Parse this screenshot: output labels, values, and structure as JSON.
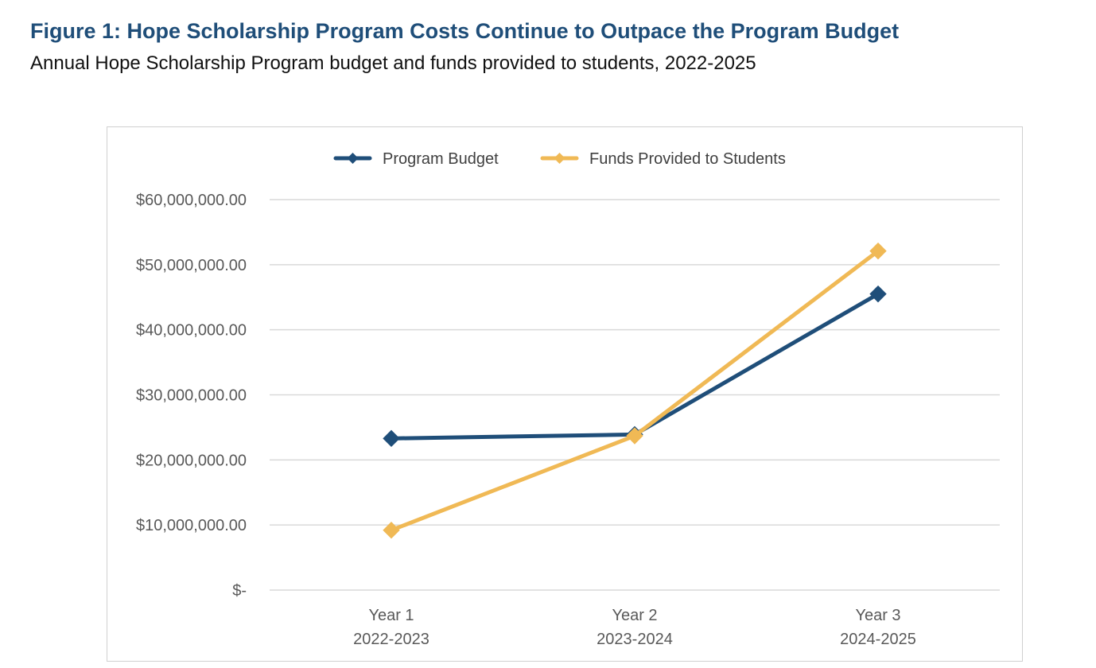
{
  "figure": {
    "title": "Figure 1: Hope Scholarship Program Costs Continue to Outpace the Program Budget",
    "subtitle": "Annual Hope Scholarship Program budget and funds provided to students, 2022-2025"
  },
  "chart_data": {
    "type": "line",
    "title": "Figure 1: Hope Scholarship Program Costs Continue to Outpace the Program Budget",
    "subtitle": "Annual Hope Scholarship Program budget and funds provided to students, 2022-2025",
    "categories": [
      [
        "Year 1",
        "2022-2023"
      ],
      [
        "Year 2",
        "2023-2024"
      ],
      [
        "Year 3",
        "2024-2025"
      ]
    ],
    "series": [
      {
        "name": "Program Budget",
        "color": "#1f4e79",
        "marker": "diamond",
        "values": [
          23300000,
          23900000,
          45500000
        ]
      },
      {
        "name": "Funds Provided to Students",
        "color": "#f0b955",
        "marker": "diamond",
        "values": [
          9200000,
          23700000,
          52100000
        ]
      }
    ],
    "ylim": [
      0,
      60000000
    ],
    "yticks": [
      0,
      10000000,
      20000000,
      30000000,
      40000000,
      50000000,
      60000000
    ],
    "ytick_labels": [
      "$-",
      "$10,000,000.00",
      "$20,000,000.00",
      "$30,000,000.00",
      "$40,000,000.00",
      "$50,000,000.00",
      "$60,000,000.00"
    ],
    "xlabel": "",
    "ylabel": "",
    "grid": true,
    "legend_position": "top-center"
  }
}
